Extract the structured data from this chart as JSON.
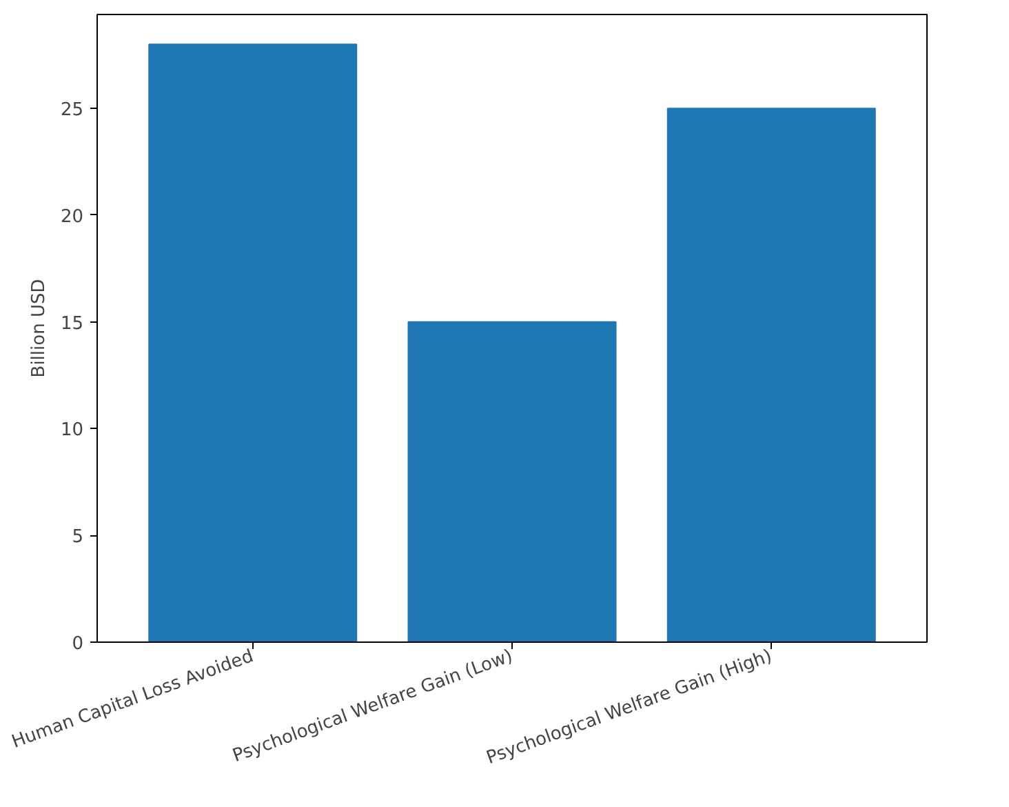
{
  "chart_data": {
    "type": "bar",
    "ylabel": "Billion USD",
    "categories": [
      "Human Capital Loss Avoided",
      "Psychological Welfare Gain (Low)",
      "Psychological Welfare Gain (High)"
    ],
    "values": [
      28,
      15,
      25
    ],
    "color": "#1f77b4",
    "ylim": [
      0,
      29.4
    ],
    "yticks": [
      0,
      5,
      10,
      15,
      20,
      25
    ],
    "grid": false
  }
}
